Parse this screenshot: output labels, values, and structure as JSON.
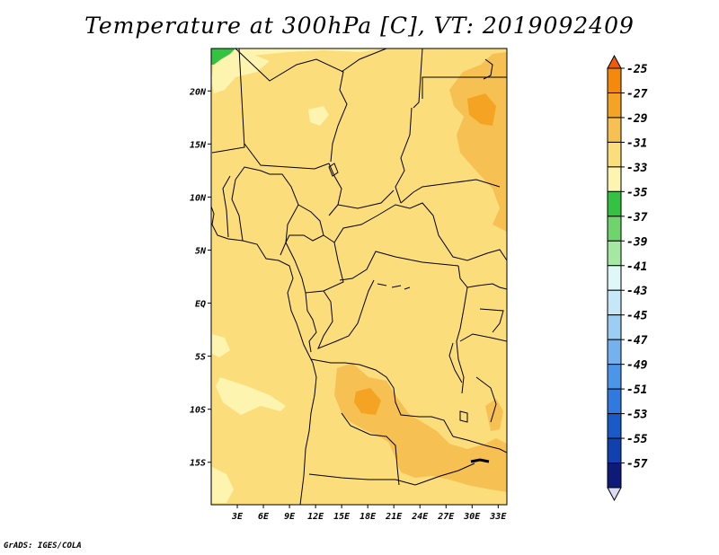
{
  "title": "Temperature at 300hPa [C], VT: 2019092409",
  "credit": "GrADS: IGES/COLA",
  "chart_data": {
    "type": "heatmap",
    "variable": "Temperature at 300hPa",
    "units": "C",
    "valid_time": "2019092409",
    "lon_range": [
      0,
      34
    ],
    "lat_range": [
      -19,
      24
    ],
    "x_ticks": [
      "3E",
      "6E",
      "9E",
      "12E",
      "15E",
      "18E",
      "21E",
      "24E",
      "27E",
      "30E",
      "33E"
    ],
    "y_ticks": [
      "20N",
      "15N",
      "10N",
      "5N",
      "EQ",
      "5S",
      "10S",
      "15S"
    ],
    "colorbar": {
      "levels": [
        "-25",
        "-27",
        "-29",
        "-31",
        "-33",
        "-35",
        "-37",
        "-39",
        "-41",
        "-43",
        "-45",
        "-47",
        "-49",
        "-51",
        "-53",
        "-55",
        "-57"
      ],
      "colors": [
        "#f05a0a",
        "#f58a0a",
        "#f5a323",
        "#f6c152",
        "#fbdd7c",
        "#fdf4b0",
        "#34c242",
        "#6fd46b",
        "#a6e7a2",
        "#dff7f7",
        "#c6e7f7",
        "#9ccdf3",
        "#74b2ef",
        "#4c96e9",
        "#2f79e0",
        "#1959c8",
        "#0f41b0",
        "#0d1a79",
        "#dcdcf2"
      ]
    },
    "field_summary": "Most of the domain is between -33 and -31 C; warmer -31 to -29 C over Sudan (northeast) and Angola/Zambia (south); cooler -35 to -33 C patches over the Atlantic southwest and the Sahara; a small -37 to -35 C area in the far northwest corner."
  }
}
